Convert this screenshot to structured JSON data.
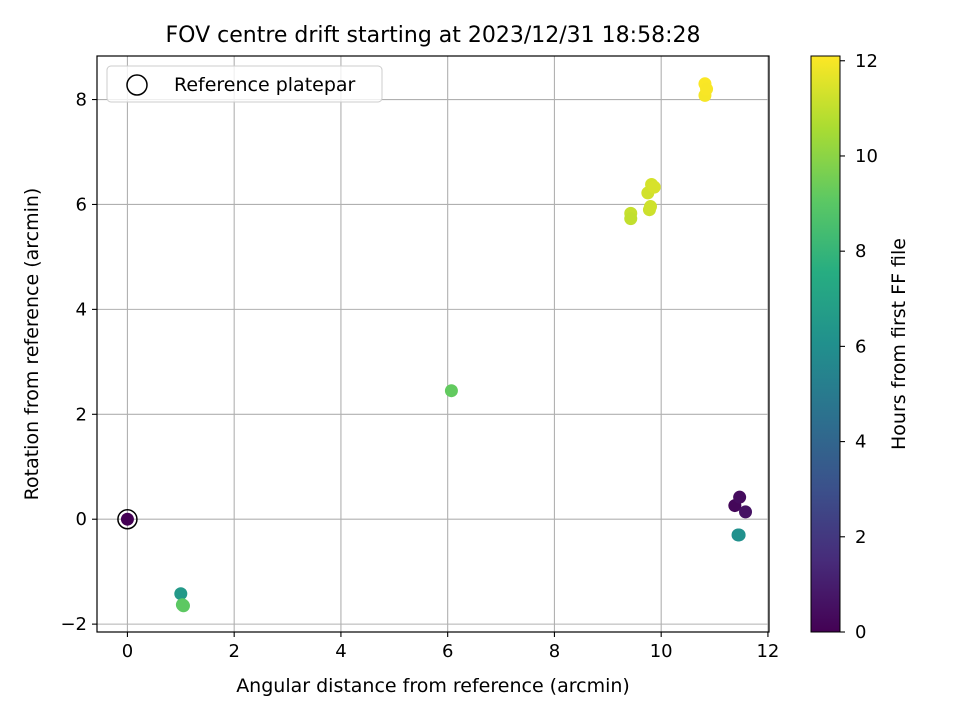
{
  "chart_data": {
    "type": "scatter",
    "title": "FOV centre drift starting at 2023/12/31 18:58:28",
    "xlabel": "Angular distance from reference (arcmin)",
    "ylabel": "Rotation from reference (arcmin)",
    "xlim": [
      -0.57,
      12.02
    ],
    "ylim": [
      -2.15,
      8.83
    ],
    "xticks": [
      "0",
      "2",
      "4",
      "6",
      "8",
      "10",
      "12"
    ],
    "yticks": [
      "−2",
      "0",
      "2",
      "4",
      "6",
      "8"
    ],
    "grid": true,
    "legend": {
      "placement": "top-left",
      "entries": [
        "Reference platepar"
      ]
    },
    "reference_point": {
      "x": 0,
      "y": 0
    },
    "colorbar": {
      "label": "Hours from first FF file",
      "colormap": "viridis",
      "range": [
        0,
        12.1
      ],
      "ticks": [
        "0",
        "2",
        "4",
        "6",
        "8",
        "10",
        "12"
      ]
    },
    "points": [
      {
        "x": 0.0,
        "y": 0.0,
        "c": 0.0
      },
      {
        "x": 11.38,
        "y": 0.26,
        "c": 0.2
      },
      {
        "x": 11.47,
        "y": 0.42,
        "c": 0.4
      },
      {
        "x": 11.58,
        "y": 0.14,
        "c": 0.6
      },
      {
        "x": 11.44,
        "y": -0.3,
        "c": 6.0
      },
      {
        "x": 11.46,
        "y": -0.3,
        "c": 6.1
      },
      {
        "x": 1.0,
        "y": -1.42,
        "c": 6.5
      },
      {
        "x": 1.03,
        "y": -1.63,
        "c": 9.0
      },
      {
        "x": 1.05,
        "y": -1.65,
        "c": 9.1
      },
      {
        "x": 6.07,
        "y": 2.45,
        "c": 9.2
      },
      {
        "x": 9.43,
        "y": 5.83,
        "c": 11.1
      },
      {
        "x": 9.43,
        "y": 5.73,
        "c": 11.0
      },
      {
        "x": 9.78,
        "y": 5.9,
        "c": 11.2
      },
      {
        "x": 9.8,
        "y": 5.96,
        "c": 11.25
      },
      {
        "x": 9.75,
        "y": 6.22,
        "c": 11.3
      },
      {
        "x": 9.82,
        "y": 6.38,
        "c": 11.35
      },
      {
        "x": 9.87,
        "y": 6.33,
        "c": 11.4
      },
      {
        "x": 10.82,
        "y": 8.08,
        "c": 11.95
      },
      {
        "x": 10.82,
        "y": 8.3,
        "c": 12.05
      },
      {
        "x": 10.85,
        "y": 8.2,
        "c": 12.0
      }
    ]
  }
}
